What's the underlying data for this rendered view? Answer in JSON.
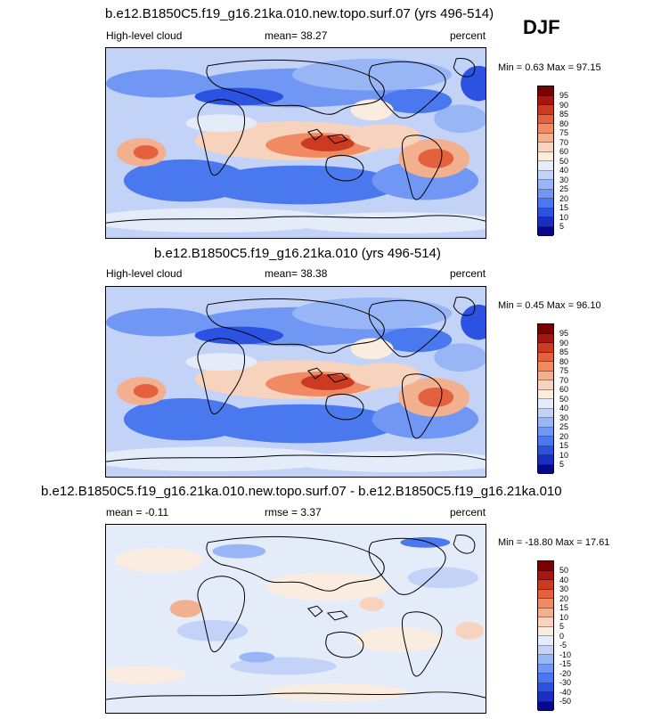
{
  "season": "DJF",
  "colors": {
    "cloud_scale": [
      "#08088a",
      "#1a2fc0",
      "#2b52e0",
      "#4a78ee",
      "#6f97f3",
      "#98b6f6",
      "#c3d3f8",
      "#e4ecfa",
      "#fbece0",
      "#f7d3bd",
      "#f3b08f",
      "#ef8a62",
      "#e4613f",
      "#cc3a22",
      "#a61612",
      "#7a0000"
    ],
    "diff_scale": [
      "#08088a",
      "#1a2fc0",
      "#2b52e0",
      "#4a78ee",
      "#6f97f3",
      "#98b6f6",
      "#c3d3f8",
      "#e4ecfa",
      "#fbece0",
      "#f7d3bd",
      "#f3b08f",
      "#ef8a62",
      "#e4613f",
      "#cc3a22",
      "#a61612",
      "#7a0000"
    ]
  },
  "panels": [
    {
      "title": "b.e12.B1850C5.f19_g16.21ka.010.new.topo.surf.07 (yrs 496-514)",
      "left": "High-level cloud",
      "center": "mean=  38.27",
      "right": "percent",
      "minmax": "Min =   0.63 Max =  97.15",
      "ticks": [
        "95",
        "90",
        "85",
        "80",
        "75",
        "70",
        "60",
        "50",
        "40",
        "30",
        "25",
        "20",
        "15",
        "10",
        "5"
      ],
      "scale": "cloud"
    },
    {
      "title": "b.e12.B1850C5.f19_g16.21ka.010 (yrs 496-514)",
      "left": "High-level cloud",
      "center": "mean=  38.38",
      "right": "percent",
      "minmax": "Min =   0.45 Max =  96.10",
      "ticks": [
        "95",
        "90",
        "85",
        "80",
        "75",
        "70",
        "60",
        "50",
        "40",
        "30",
        "25",
        "20",
        "15",
        "10",
        "5"
      ],
      "scale": "cloud"
    },
    {
      "title": "b.e12.B1850C5.f19_g16.21ka.010.new.topo.surf.07 - b.e12.B1850C5.f19_g16.21ka.010",
      "left": "mean =  -0.11",
      "center": "rmse =   3.37",
      "right": "percent",
      "minmax": "Min = -18.80 Max =  17.61",
      "ticks": [
        "50",
        "40",
        "30",
        "20",
        "15",
        "10",
        "5",
        "0",
        "-5",
        "-10",
        "-15",
        "-20",
        "-30",
        "-40",
        "-50"
      ],
      "scale": "diff"
    }
  ]
}
